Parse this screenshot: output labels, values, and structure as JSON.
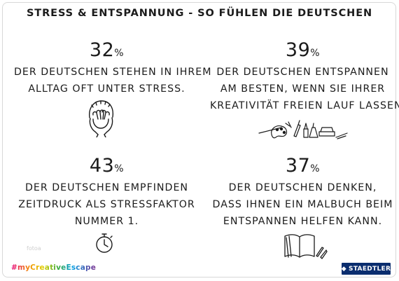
{
  "title": "STRESS & ENTSPANNUNG - SO FÜHLEN DIE DEUTSCHEN",
  "percent_sign": "%",
  "stats": [
    {
      "value": "32",
      "lines": [
        "DER DEUTSCHEN STEHEN IN IHREM",
        "ALLTAG OFT UNTER STRESS."
      ],
      "icon": "stressed-face-icon"
    },
    {
      "value": "39",
      "lines": [
        "DER DEUTSCHEN ENTSPANNEN",
        "AM BESTEN, WENN SIE IHRER",
        "KREATIVITÄT FREIEN LAUF LASSEN."
      ],
      "icon": "art-supplies-icon"
    },
    {
      "value": "43",
      "lines": [
        "DER DEUTSCHEN EMPFINDEN",
        "ZEITDRUCK ALS STRESSFAKTOR",
        "NUMMER 1."
      ],
      "icon": "stopwatch-icon"
    },
    {
      "value": "37",
      "lines": [
        "DER DEUTSCHEN DENKEN,",
        "DASS IHNEN EIN MALBUCH BEIM",
        "ENTSPANNEN HELFEN KANN."
      ],
      "icon": "coloring-book-icon"
    }
  ],
  "hashtag": "#myCreativeEscape",
  "brand": "STAEDTLER",
  "watermark": "fotoa",
  "colors": {
    "text": "#1b1b1b",
    "brand_blue": "#0a2d6e",
    "border": "#d8d8d8"
  }
}
